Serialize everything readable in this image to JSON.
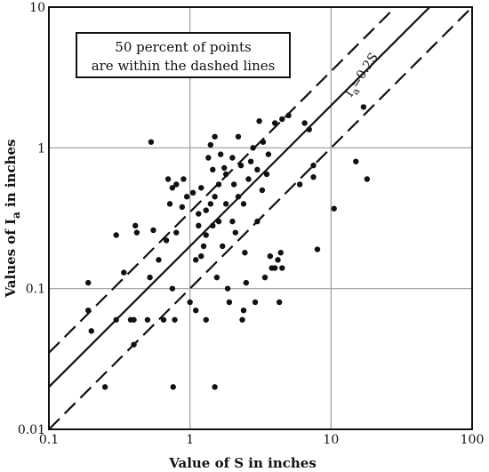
{
  "chart_data": {
    "type": "scatter",
    "xscale": "log",
    "yscale": "log",
    "xlim": [
      0.1,
      100
    ],
    "ylim": [
      0.01,
      10
    ],
    "grid": true,
    "xlabel": "Value of S in inches",
    "ylabel_main": "Values of I",
    "ylabel_sub": "a",
    "ylabel_suffix": " in inches",
    "x_ticks": [
      0.1,
      1,
      10,
      100
    ],
    "x_tick_labels": [
      "0.1",
      "1",
      "10",
      "100"
    ],
    "y_ticks": [
      0.01,
      0.1,
      1,
      10
    ],
    "y_tick_labels": [
      "0.01",
      "0.1",
      "1",
      "10"
    ],
    "annotation_lines": [
      "50 percent of points",
      "are within the dashed lines"
    ],
    "line_label_main": "I",
    "line_label_sub": "a",
    "line_label_rest": "=0.2S",
    "reference_lines": [
      {
        "style": "solid",
        "slope": 1,
        "coef": 0.2
      },
      {
        "style": "dashed",
        "slope": 1,
        "coef": 0.35
      },
      {
        "style": "dashed",
        "slope": 1,
        "coef": 0.1
      }
    ],
    "points": [
      [
        0.19,
        0.11
      ],
      [
        0.19,
        0.07
      ],
      [
        0.2,
        0.05
      ],
      [
        0.25,
        0.02
      ],
      [
        0.3,
        0.06
      ],
      [
        0.3,
        0.24
      ],
      [
        0.34,
        0.13
      ],
      [
        0.38,
        0.06
      ],
      [
        0.4,
        0.06
      ],
      [
        0.4,
        0.04
      ],
      [
        0.41,
        0.28
      ],
      [
        0.42,
        0.25
      ],
      [
        0.5,
        0.06
      ],
      [
        0.52,
        0.12
      ],
      [
        0.53,
        1.1
      ],
      [
        0.55,
        0.26
      ],
      [
        0.6,
        0.16
      ],
      [
        0.65,
        0.06
      ],
      [
        0.68,
        0.22
      ],
      [
        0.7,
        0.6
      ],
      [
        0.72,
        0.4
      ],
      [
        0.75,
        0.52
      ],
      [
        0.75,
        0.1
      ],
      [
        0.76,
        0.02
      ],
      [
        0.78,
        0.06
      ],
      [
        0.8,
        0.25
      ],
      [
        0.8,
        0.55
      ],
      [
        0.88,
        0.38
      ],
      [
        0.9,
        0.6
      ],
      [
        0.95,
        0.45
      ],
      [
        1.0,
        0.08
      ],
      [
        1.05,
        0.48
      ],
      [
        1.1,
        0.16
      ],
      [
        1.1,
        0.07
      ],
      [
        1.15,
        0.34
      ],
      [
        1.15,
        0.28
      ],
      [
        1.2,
        0.52
      ],
      [
        1.2,
        0.17
      ],
      [
        1.25,
        0.2
      ],
      [
        1.3,
        0.06
      ],
      [
        1.3,
        0.24
      ],
      [
        1.3,
        0.36
      ],
      [
        1.35,
        0.85
      ],
      [
        1.4,
        0.4
      ],
      [
        1.4,
        1.05
      ],
      [
        1.45,
        0.28
      ],
      [
        1.45,
        0.7
      ],
      [
        1.5,
        1.2
      ],
      [
        1.5,
        0.02
      ],
      [
        1.5,
        0.45
      ],
      [
        1.55,
        0.12
      ],
      [
        1.6,
        0.3
      ],
      [
        1.6,
        0.55
      ],
      [
        1.65,
        0.9
      ],
      [
        1.7,
        0.2
      ],
      [
        1.75,
        0.72
      ],
      [
        1.8,
        0.65
      ],
      [
        1.8,
        0.4
      ],
      [
        1.85,
        0.1
      ],
      [
        1.9,
        0.08
      ],
      [
        2.0,
        0.3
      ],
      [
        2.0,
        0.85
      ],
      [
        2.05,
        0.55
      ],
      [
        2.1,
        0.25
      ],
      [
        2.2,
        1.2
      ],
      [
        2.2,
        0.45
      ],
      [
        2.3,
        0.75
      ],
      [
        2.35,
        0.06
      ],
      [
        2.4,
        0.07
      ],
      [
        2.4,
        0.4
      ],
      [
        2.45,
        0.18
      ],
      [
        2.5,
        0.11
      ],
      [
        2.6,
        0.6
      ],
      [
        2.7,
        0.8
      ],
      [
        2.8,
        1.0
      ],
      [
        2.9,
        0.08
      ],
      [
        3.0,
        0.3
      ],
      [
        3.0,
        0.7
      ],
      [
        3.1,
        1.55
      ],
      [
        3.25,
        0.5
      ],
      [
        3.3,
        1.1
      ],
      [
        3.4,
        0.12
      ],
      [
        3.5,
        0.65
      ],
      [
        3.6,
        0.9
      ],
      [
        3.7,
        0.17
      ],
      [
        3.8,
        0.14
      ],
      [
        4.0,
        0.14
      ],
      [
        4.0,
        1.5
      ],
      [
        4.2,
        0.16
      ],
      [
        4.3,
        0.08
      ],
      [
        4.4,
        0.18
      ],
      [
        4.5,
        0.14
      ],
      [
        4.5,
        1.6
      ],
      [
        5.0,
        1.7
      ],
      [
        6.0,
        0.55
      ],
      [
        6.5,
        1.5
      ],
      [
        7.0,
        1.35
      ],
      [
        7.5,
        0.75
      ],
      [
        7.5,
        0.62
      ],
      [
        8.0,
        0.19
      ],
      [
        10.5,
        0.37
      ],
      [
        15.0,
        0.8
      ],
      [
        17.0,
        1.95
      ],
      [
        18.0,
        0.6
      ]
    ]
  }
}
